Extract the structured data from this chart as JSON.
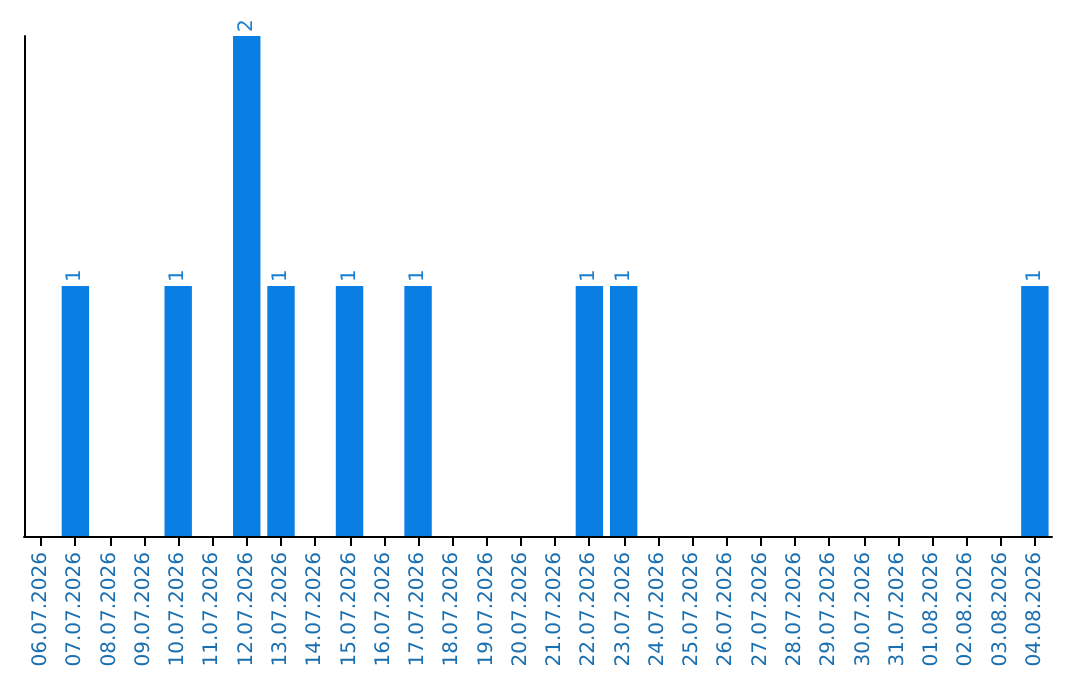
{
  "chart_data": {
    "type": "bar",
    "categories": [
      "06.07.2026",
      "07.07.2026",
      "08.07.2026",
      "09.07.2026",
      "10.07.2026",
      "11.07.2026",
      "12.07.2026",
      "13.07.2026",
      "14.07.2026",
      "15.07.2026",
      "16.07.2026",
      "17.07.2026",
      "18.07.2026",
      "19.07.2026",
      "20.07.2026",
      "21.07.2026",
      "22.07.2026",
      "23.07.2026",
      "24.07.2026",
      "25.07.2026",
      "26.07.2026",
      "27.07.2026",
      "28.07.2026",
      "29.07.2026",
      "30.07.2026",
      "31.07.2026",
      "01.08.2026",
      "02.08.2026",
      "03.08.2026",
      "04.08.2026"
    ],
    "values": [
      0,
      1,
      0,
      0,
      1,
      0,
      2,
      1,
      0,
      1,
      0,
      1,
      0,
      0,
      0,
      0,
      1,
      1,
      0,
      0,
      0,
      0,
      0,
      0,
      0,
      0,
      0,
      0,
      0,
      1
    ],
    "value_labels": [
      null,
      "1",
      null,
      null,
      "1",
      null,
      "2",
      "1",
      null,
      "1",
      null,
      "1",
      null,
      null,
      null,
      null,
      "1",
      "1",
      null,
      null,
      null,
      null,
      null,
      null,
      null,
      null,
      null,
      null,
      null,
      "1"
    ],
    "color": "#0a7fe3",
    "grid": false
  }
}
